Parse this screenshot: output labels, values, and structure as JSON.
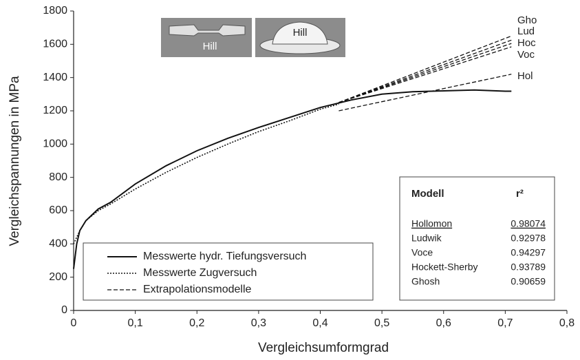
{
  "chart_data": {
    "type": "line",
    "xlabel": "Vergleichsumformgrad",
    "ylabel": "Vergleichspannungen in MPa",
    "xlim": [
      0,
      0.8
    ],
    "ylim": [
      0,
      1800
    ],
    "xticks": [
      0,
      {
        "value": 0.1,
        "label": "0,1"
      },
      {
        "value": 0.2,
        "label": "0,2"
      },
      {
        "value": 0.3,
        "label": "0,3"
      },
      {
        "value": 0.4,
        "label": "0,4"
      },
      {
        "value": 0.5,
        "label": "0,5"
      },
      {
        "value": 0.6,
        "label": "0,6"
      },
      {
        "value": 0.7,
        "label": "0,7"
      },
      {
        "value": 0.8,
        "label": "0,8"
      }
    ],
    "yticks": [
      0,
      200,
      400,
      600,
      800,
      1000,
      1200,
      1400,
      1600,
      1800
    ],
    "series": [
      {
        "name": "Messwerte hydr. Tiefungsversuch",
        "color": "#111111",
        "style": "solid",
        "x": [
          0,
          0.005,
          0.01,
          0.02,
          0.04,
          0.06,
          0.1,
          0.15,
          0.2,
          0.25,
          0.3,
          0.35,
          0.4,
          0.45,
          0.5,
          0.55,
          0.6,
          0.65,
          0.7,
          0.71
        ],
        "values": [
          250,
          400,
          480,
          540,
          610,
          650,
          760,
          870,
          960,
          1035,
          1100,
          1160,
          1220,
          1265,
          1300,
          1315,
          1320,
          1325,
          1318,
          1318
        ]
      },
      {
        "name": "Messwerte Zugversuch",
        "color": "#111111",
        "style": "dotted",
        "x": [
          0,
          0.01,
          0.02,
          0.04,
          0.06,
          0.1,
          0.15,
          0.2,
          0.25,
          0.3,
          0.35,
          0.4,
          0.43
        ],
        "values": [
          400,
          480,
          540,
          600,
          640,
          730,
          830,
          920,
          1000,
          1075,
          1140,
          1210,
          1240
        ]
      },
      {
        "name": "Extrapolationsmodelle",
        "color": "#111111",
        "style": "dashed",
        "models": [
          {
            "label": "Gho",
            "x": [
              0.43,
              0.71
            ],
            "values": [
              1250,
              1650
            ]
          },
          {
            "label": "Lud",
            "x": [
              0.43,
              0.71
            ],
            "values": [
              1250,
              1625
            ]
          },
          {
            "label": "Hoc",
            "x": [
              0.43,
              0.71
            ],
            "values": [
              1250,
              1605
            ]
          },
          {
            "label": "Voc",
            "x": [
              0.43,
              0.71
            ],
            "values": [
              1250,
              1585
            ]
          },
          {
            "label": "Hol",
            "x": [
              0.43,
              0.71
            ],
            "values": [
              1200,
              1420
            ]
          }
        ]
      }
    ],
    "insets": [
      "Hill",
      "Hill"
    ],
    "table": {
      "header": [
        "Modell",
        "r²"
      ],
      "rows": [
        [
          "Hollomon",
          0.98074
        ],
        [
          "Ludwik",
          0.92978
        ],
        [
          "Voce",
          0.94297
        ],
        [
          "Hockett-Sherby",
          0.93789
        ],
        [
          "Ghosh",
          0.90659
        ]
      ]
    }
  }
}
